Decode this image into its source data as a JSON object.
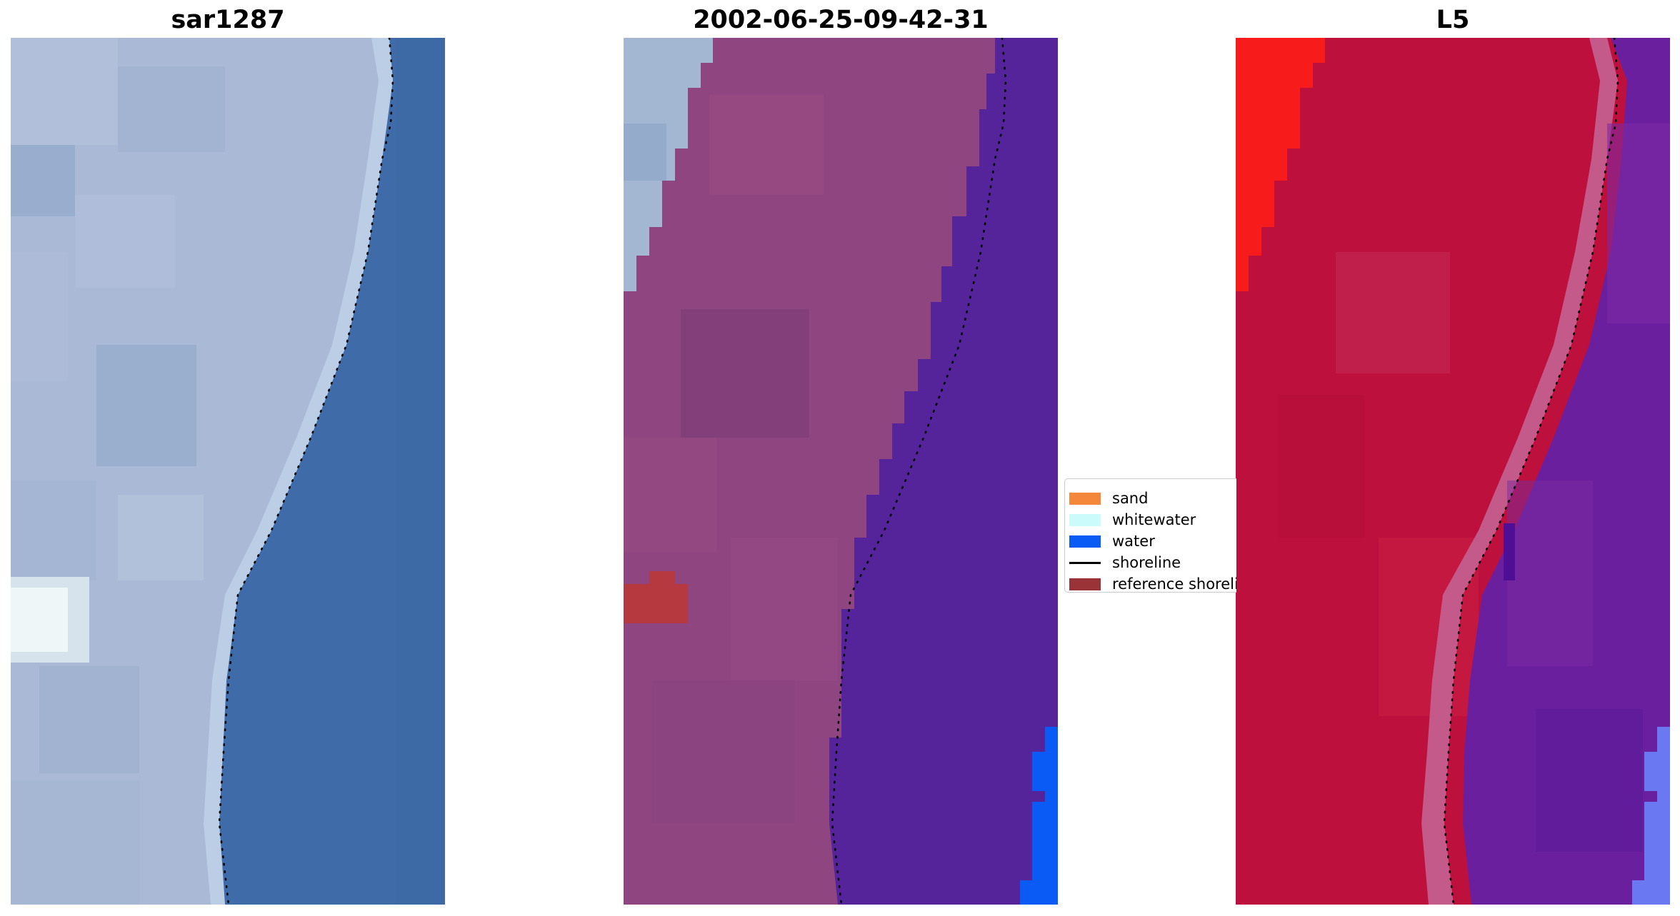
{
  "panels": [
    {
      "title": "sar1287"
    },
    {
      "title": "2002-06-25-09-42-31"
    },
    {
      "title": "L5"
    }
  ],
  "legend": {
    "items": [
      {
        "label": "sand",
        "color": "#f4873c",
        "kind": "patch"
      },
      {
        "label": "whitewater",
        "color": "#ccfbfb",
        "kind": "patch"
      },
      {
        "label": "water",
        "color": "#0a5bf6",
        "kind": "patch"
      },
      {
        "label": "shoreline",
        "color": "#000000",
        "kind": "line"
      },
      {
        "label": "reference shoreline",
        "color": "#9a3338",
        "kind": "patch"
      }
    ]
  },
  "colors": {
    "rgb_land": "#a9b9d6",
    "rgb_water": "#3f6ca8",
    "class_sand_overlay": "#8e4580",
    "class_water_overlay": "#55239a",
    "class_whitewater_region": "#a3b7d3",
    "class_reference": "#b5393f",
    "class_pure_water": "#0a5bf6",
    "index_land": "#bd103c",
    "index_bright": "#f81b1b",
    "index_water": "#6a209e",
    "index_pure": "#6a78f2"
  }
}
